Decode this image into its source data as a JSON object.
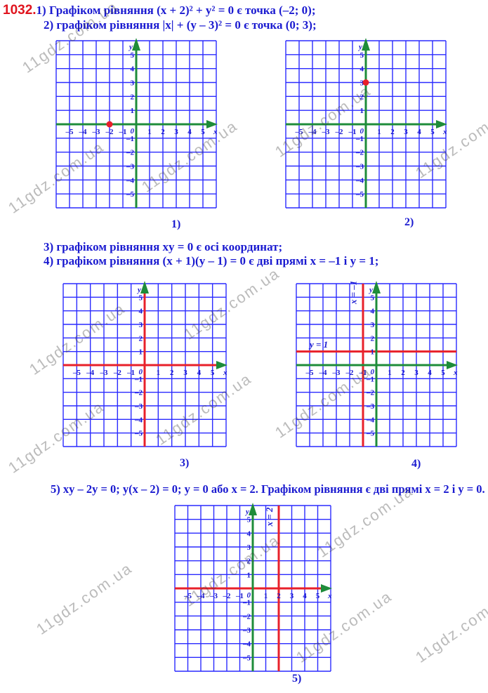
{
  "problem_number": "1032.",
  "lines": [
    "1) Графіком рівняння (x + 2)² + y² = 0 є точка (–2; 0);",
    "2) графіком рівняння |x| + (y – 3)² = 0 є точка (0; 3);",
    "3) графіком рівняння xy = 0 є осі координат;",
    "4) графіком рівняння (x + 1)(y – 1) = 0 є дві прямі x = –1 і y = 1;",
    "5) xy – 2y = 0; y(x – 2) = 0; y = 0 або x = 2. Графіком рівняння є дві прямі x = 2 і y = 0."
  ],
  "colors": {
    "grid": "#2a2aff",
    "axis": "#1e8c3a",
    "red": "#e8202a",
    "text": "#1a1ad0"
  },
  "graphs": [
    {
      "label": "1)",
      "xlim": [
        -6,
        6
      ],
      "ylim": [
        -6,
        6
      ],
      "axis_x_color": "axis",
      "axis_y_color": "axis",
      "points": [
        [
          -2,
          0
        ]
      ],
      "vlines": [],
      "hlines": [],
      "line_labels": []
    },
    {
      "label": "2)",
      "xlim": [
        -6,
        6
      ],
      "ylim": [
        -6,
        6
      ],
      "axis_x_color": "axis",
      "axis_y_color": "axis",
      "points": [
        [
          0,
          3
        ]
      ],
      "vlines": [],
      "hlines": [],
      "line_labels": []
    },
    {
      "label": "3)",
      "xlim": [
        -6,
        6
      ],
      "ylim": [
        -6,
        6
      ],
      "axis_x_color": "red",
      "axis_y_color": "red",
      "points": [],
      "vlines": [],
      "hlines": [],
      "line_labels": []
    },
    {
      "label": "4)",
      "xlim": [
        -6,
        6
      ],
      "ylim": [
        -6,
        6
      ],
      "axis_x_color": "axis",
      "axis_y_color": "axis",
      "points": [],
      "vlines": [
        -1
      ],
      "hlines": [
        1
      ],
      "line_labels": [
        {
          "text": "y = 1",
          "x": -5,
          "y": 1.3,
          "rotate": false
        },
        {
          "text": "x = –1",
          "x": -1.5,
          "y": 4.5,
          "rotate": true
        }
      ]
    },
    {
      "label": "5)",
      "xlim": [
        -6,
        6
      ],
      "ylim": [
        -6,
        6
      ],
      "axis_x_color": "red",
      "axis_y_color": "axis",
      "points": [],
      "vlines": [
        2
      ],
      "hlines": [],
      "line_labels": [
        {
          "text": "x = 2",
          "x": 1.5,
          "y": 4.5,
          "rotate": true
        }
      ]
    }
  ],
  "axis_names": {
    "x": "x",
    "y": "y",
    "origin": "0"
  },
  "watermark": "11gdz.com.ua"
}
